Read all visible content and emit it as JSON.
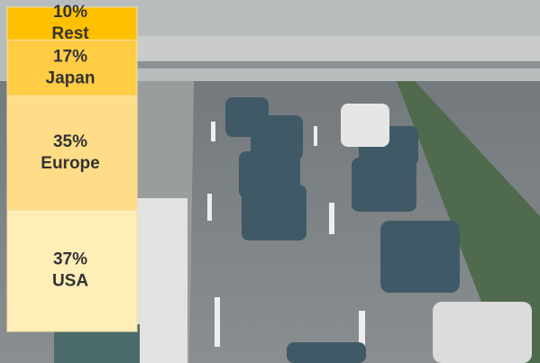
{
  "chart_data": {
    "type": "stacked_bar",
    "series": [
      {
        "name": "USA",
        "color": "#ffeeb8",
        "values": [
          37
        ],
        "value_labels": [
          "37%"
        ]
      },
      {
        "name": "Europe",
        "color": "#ffdd88",
        "values": [
          35
        ],
        "value_labels": [
          "35%"
        ]
      },
      {
        "name": "Japan",
        "color": "#ffcc44",
        "values": [
          17
        ],
        "value_labels": [
          "17%"
        ]
      },
      {
        "name": "Rest",
        "color": "#ffc000",
        "values": [
          10
        ],
        "value_labels": [
          "10%"
        ]
      }
    ]
  }
}
